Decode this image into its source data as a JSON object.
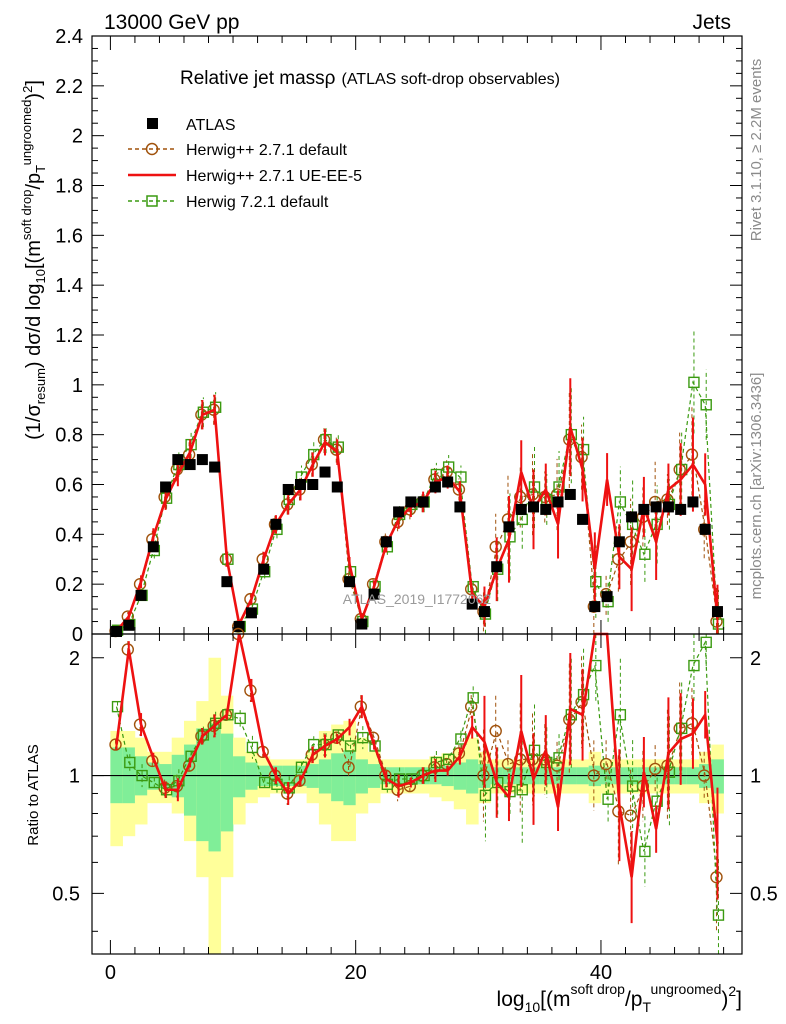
{
  "header": {
    "energy_label": "13000 GeV pp",
    "category_label": "Jets"
  },
  "side_labels": {
    "rivet": "Rivet 3.1.10, ≥ 2.2M events",
    "mcplots": "mcplots.cern.ch [arXiv:1306.3436]"
  },
  "watermark": "ATLAS_2019_I1772062",
  "colors": {
    "atlas": "#000000",
    "herwig_default": "#a0520c",
    "herwig_ue": "#ee1111",
    "herwig721": "#3a9a10",
    "band_inner": "#80ee98",
    "band_outer": "#ffff9a"
  },
  "chart_data": {
    "type": "line",
    "title": "Relative jet massρ",
    "subtitle": "(ATLAS soft-drop observables)",
    "ylabel": "(1/σresum) dσ/d log10[(m^soft drop/pT^ungroomed)²]",
    "xlabel": "log10[(m^soft drop/pT^ungroomed)²]",
    "ratio_ylabel": "Ratio to ATLAS",
    "xlim": [
      -1.5,
      51.5
    ],
    "ylim": [
      0,
      2.4
    ],
    "ratio_ylim": [
      0.35,
      2.3
    ],
    "x_ticks": [
      0,
      20,
      40
    ],
    "y_ticks": [
      0,
      0.2,
      0.4,
      0.6,
      0.8,
      1,
      1.2,
      1.4,
      1.6,
      1.8,
      2,
      2.2,
      2.4
    ],
    "y_tick_labels": [
      "0",
      "0.2",
      "0.4",
      "0.6",
      "0.8",
      "1",
      "1.2",
      "1.4",
      "1.6",
      "1.8",
      "2",
      "2.2",
      "2.4"
    ],
    "ratio_ticks": [
      0.5,
      1,
      2
    ],
    "ratio_tick_labels": [
      "0.5",
      "1",
      "2"
    ],
    "x": [
      0.5,
      1.5,
      2.5,
      3.5,
      4.5,
      5.5,
      6.5,
      7.5,
      8.5,
      9.5,
      10.5,
      11.5,
      12.5,
      13.5,
      14.5,
      15.5,
      16.5,
      17.5,
      18.5,
      19.5,
      20.5,
      21.5,
      22.5,
      23.5,
      24.5,
      25.5,
      26.5,
      27.5,
      28.5,
      29.5,
      30.5,
      31.5,
      32.5,
      33.5,
      34.5,
      35.5,
      36.5,
      37.5,
      38.5,
      39.5,
      40.5,
      41.5,
      42.5,
      43.5,
      44.5,
      45.5,
      46.5,
      47.5,
      48.5,
      49.5
    ],
    "series": [
      {
        "name": "ATLAS",
        "style": "markers",
        "values": [
          0.01,
          0.035,
          0.155,
          0.35,
          0.59,
          0.7,
          0.68,
          0.7,
          0.67,
          0.21,
          0.03,
          0.085,
          0.26,
          0.44,
          0.58,
          0.6,
          0.6,
          0.65,
          0.59,
          0.21,
          0.04,
          0.16,
          0.37,
          0.49,
          0.53,
          0.53,
          0.59,
          0.61,
          0.51,
          0.12,
          0.09,
          0.27,
          0.43,
          0.5,
          0.51,
          0.5,
          0.53,
          0.56,
          0.46,
          0.11,
          0.15,
          0.37,
          0.47,
          0.5,
          0.51,
          0.51,
          0.5,
          0.53,
          0.42,
          0.09
        ]
      },
      {
        "name": "Herwig++ 2.7.1 default",
        "style": "dashed-circles",
        "values": [
          0.012,
          0.07,
          0.2,
          0.38,
          0.55,
          0.66,
          0.72,
          0.88,
          0.9,
          0.3,
          0.03,
          0.14,
          0.3,
          0.44,
          0.52,
          0.58,
          0.68,
          0.78,
          0.74,
          0.22,
          0.06,
          0.2,
          0.37,
          0.45,
          0.5,
          0.53,
          0.62,
          0.65,
          0.58,
          0.18,
          0.09,
          0.35,
          0.46,
          0.55,
          0.56,
          0.55,
          0.56,
          0.78,
          0.71,
          0.11,
          0.16,
          0.3,
          0.37,
          0.47,
          0.53,
          0.54,
          0.66,
          0.72,
          0.42,
          0.05
        ]
      },
      {
        "name": "Herwig++ 2.7.1 UE-EE-5",
        "style": "solid-line",
        "values": [
          0.012,
          0.07,
          0.21,
          0.39,
          0.54,
          0.64,
          0.73,
          0.88,
          0.9,
          0.3,
          0.04,
          0.14,
          0.3,
          0.44,
          0.52,
          0.58,
          0.68,
          0.77,
          0.73,
          0.28,
          0.06,
          0.19,
          0.36,
          0.46,
          0.51,
          0.53,
          0.61,
          0.63,
          0.57,
          0.16,
          0.11,
          0.26,
          0.38,
          0.65,
          0.5,
          0.58,
          0.44,
          0.83,
          0.66,
          0.26,
          0.62,
          0.31,
          0.26,
          0.51,
          0.37,
          0.58,
          0.62,
          0.68,
          0.6,
          0.06
        ]
      },
      {
        "name": "Herwig 7.2.1 default",
        "style": "dashed-squares",
        "values": [
          0.015,
          0.038,
          0.155,
          0.335,
          0.545,
          0.68,
          0.76,
          0.89,
          0.91,
          0.3,
          0.03,
          0.1,
          0.25,
          0.42,
          0.54,
          0.63,
          0.72,
          0.78,
          0.75,
          0.25,
          0.05,
          0.19,
          0.35,
          0.48,
          0.52,
          0.53,
          0.64,
          0.67,
          0.63,
          0.19,
          0.08,
          0.26,
          0.39,
          0.46,
          0.59,
          0.54,
          0.59,
          0.8,
          0.74,
          0.21,
          0.13,
          0.53,
          0.44,
          0.32,
          0.44,
          0.52,
          0.66,
          1.01,
          0.92,
          0.04
        ]
      }
    ],
    "ratio_series": [
      {
        "name": "Herwig++ 2.7.1 default",
        "values": [
          1.2,
          2.1,
          1.35,
          1.09,
          0.93,
          0.94,
          1.06,
          1.26,
          1.34,
          1.43,
          2.3,
          1.65,
          1.15,
          1.0,
          0.9,
          0.97,
          1.13,
          1.2,
          1.25,
          1.05,
          1.5,
          1.25,
          1.0,
          0.92,
          0.94,
          1.0,
          1.05,
          1.07,
          1.14,
          1.5,
          1.0,
          1.3,
          1.07,
          1.1,
          1.1,
          1.1,
          1.06,
          1.39,
          1.54,
          1.0,
          1.07,
          0.81,
          0.79,
          0.94,
          1.04,
          1.06,
          1.32,
          1.36,
          1.0,
          0.55
        ]
      },
      {
        "name": "Herwig++ 2.7.1 UE-EE-5",
        "values": [
          1.2,
          2.1,
          1.35,
          1.11,
          0.92,
          0.92,
          1.08,
          1.26,
          1.34,
          1.43,
          2.3,
          1.65,
          1.15,
          1.0,
          0.9,
          0.97,
          1.13,
          1.19,
          1.24,
          1.33,
          1.5,
          1.2,
          0.98,
          0.94,
          0.96,
          1.0,
          1.03,
          1.03,
          1.12,
          1.33,
          1.22,
          0.96,
          0.88,
          1.3,
          0.98,
          1.16,
          0.83,
          1.48,
          1.43,
          2.36,
          4.1,
          0.84,
          0.55,
          1.02,
          0.73,
          1.14,
          1.24,
          1.28,
          1.43,
          0.67
        ]
      },
      {
        "name": "Herwig 7.2.1 default",
        "values": [
          1.5,
          1.08,
          1.0,
          0.96,
          0.92,
          0.97,
          1.12,
          1.27,
          1.36,
          1.43,
          1.4,
          1.18,
          0.96,
          0.95,
          0.93,
          1.05,
          1.2,
          1.2,
          1.27,
          1.19,
          1.25,
          1.19,
          0.95,
          0.98,
          0.98,
          1.0,
          1.08,
          1.1,
          1.24,
          1.58,
          0.89,
          0.96,
          0.91,
          0.92,
          1.16,
          1.08,
          1.11,
          1.43,
          1.61,
          1.91,
          0.87,
          1.43,
          0.94,
          0.64,
          0.86,
          1.02,
          1.32,
          1.91,
          2.19,
          0.44
        ]
      }
    ],
    "ratio_band_inner": [
      [
        0.85,
        1.18
      ],
      [
        0.85,
        1.18
      ],
      [
        0.89,
        1.12
      ],
      [
        0.92,
        1.08
      ],
      [
        0.93,
        1.07
      ],
      [
        0.88,
        1.13
      ],
      [
        0.79,
        1.2
      ],
      [
        0.68,
        1.32
      ],
      [
        0.64,
        1.36
      ],
      [
        0.72,
        1.28
      ],
      [
        0.88,
        1.12
      ],
      [
        0.92,
        1.08
      ],
      [
        0.94,
        1.06
      ],
      [
        0.94,
        1.06
      ],
      [
        0.94,
        1.06
      ],
      [
        0.94,
        1.06
      ],
      [
        0.93,
        1.07
      ],
      [
        0.9,
        1.1
      ],
      [
        0.86,
        1.14
      ],
      [
        0.84,
        1.16
      ],
      [
        0.9,
        1.1
      ],
      [
        0.93,
        1.07
      ],
      [
        0.95,
        1.05
      ],
      [
        0.95,
        1.05
      ],
      [
        0.95,
        1.05
      ],
      [
        0.95,
        1.05
      ],
      [
        0.95,
        1.05
      ],
      [
        0.94,
        1.06
      ],
      [
        0.92,
        1.08
      ],
      [
        0.9,
        1.1
      ],
      [
        0.93,
        1.07
      ],
      [
        0.95,
        1.05
      ],
      [
        0.95,
        1.05
      ],
      [
        0.95,
        1.05
      ],
      [
        0.95,
        1.05
      ],
      [
        0.95,
        1.05
      ],
      [
        0.95,
        1.05
      ],
      [
        0.95,
        1.05
      ],
      [
        0.95,
        1.05
      ],
      [
        0.94,
        1.06
      ],
      [
        0.95,
        1.05
      ],
      [
        0.95,
        1.05
      ],
      [
        0.95,
        1.05
      ],
      [
        0.95,
        1.05
      ],
      [
        0.95,
        1.05
      ],
      [
        0.95,
        1.05
      ],
      [
        0.95,
        1.05
      ],
      [
        0.95,
        1.05
      ],
      [
        0.93,
        1.07
      ],
      [
        0.9,
        1.1
      ]
    ],
    "ratio_band_outer": [
      [
        0.66,
        1.3
      ],
      [
        0.7,
        1.3
      ],
      [
        0.75,
        1.25
      ],
      [
        0.85,
        1.15
      ],
      [
        0.85,
        1.15
      ],
      [
        0.8,
        1.25
      ],
      [
        0.68,
        1.38
      ],
      [
        0.55,
        1.55
      ],
      [
        0.2,
        2.0
      ],
      [
        0.55,
        1.6
      ],
      [
        0.75,
        1.25
      ],
      [
        0.85,
        1.15
      ],
      [
        0.88,
        1.12
      ],
      [
        0.9,
        1.1
      ],
      [
        0.9,
        1.1
      ],
      [
        0.9,
        1.1
      ],
      [
        0.85,
        1.15
      ],
      [
        0.75,
        1.3
      ],
      [
        0.68,
        1.35
      ],
      [
        0.68,
        1.38
      ],
      [
        0.8,
        1.25
      ],
      [
        0.85,
        1.15
      ],
      [
        0.9,
        1.1
      ],
      [
        0.9,
        1.1
      ],
      [
        0.9,
        1.1
      ],
      [
        0.9,
        1.1
      ],
      [
        0.88,
        1.12
      ],
      [
        0.86,
        1.14
      ],
      [
        0.82,
        1.18
      ],
      [
        0.75,
        1.25
      ],
      [
        0.85,
        1.15
      ],
      [
        0.9,
        1.1
      ],
      [
        0.9,
        1.1
      ],
      [
        0.9,
        1.1
      ],
      [
        0.9,
        1.1
      ],
      [
        0.9,
        1.1
      ],
      [
        0.9,
        1.1
      ],
      [
        0.9,
        1.1
      ],
      [
        0.9,
        1.1
      ],
      [
        0.85,
        1.15
      ],
      [
        0.9,
        1.1
      ],
      [
        0.9,
        1.1
      ],
      [
        0.9,
        1.1
      ],
      [
        0.9,
        1.1
      ],
      [
        0.9,
        1.1
      ],
      [
        0.9,
        1.1
      ],
      [
        0.9,
        1.1
      ],
      [
        0.9,
        1.1
      ],
      [
        0.85,
        1.15
      ],
      [
        0.8,
        1.2
      ]
    ]
  }
}
